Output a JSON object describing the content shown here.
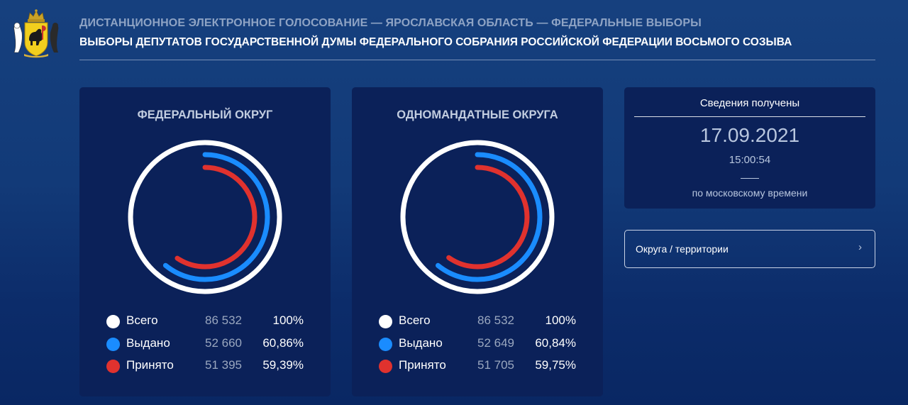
{
  "header": {
    "subtitle": "ДИСТАНЦИОННОЕ ЭЛЕКТРОННОЕ ГОЛОСОВАНИЕ — ЯРОСЛАВСКАЯ ОБЛАСТЬ — ФЕДЕРАЛЬНЫЕ ВЫБОРЫ",
    "title": "ВЫБОРЫ ДЕПУТАТОВ ГОСУДАРСТВЕННОЙ ДУМЫ ФЕДЕРАЛЬНОГО СОБРАНИЯ РОССИЙСКОЙ ФЕДЕРАЦИИ ВОСЬМОГО СОЗЫВА",
    "emblem_icon": "coat-of-arms-icon"
  },
  "colors": {
    "total": "#ffffff",
    "issued": "#1a8cff",
    "accepted": "#e0322e",
    "card_bg": "#0b2159"
  },
  "cards": [
    {
      "title": "ФЕДЕРАЛЬНЫЙ ОКРУГ",
      "rows": [
        {
          "label": "Всего",
          "value": "86 532",
          "percent": "100%",
          "fraction": 1.0
        },
        {
          "label": "Выдано",
          "value": "52 660",
          "percent": "60,86%",
          "fraction": 0.6086
        },
        {
          "label": "Принято",
          "value": "51 395",
          "percent": "59,39%",
          "fraction": 0.5939
        }
      ]
    },
    {
      "title": "ОДНОМАНДАТНЫЕ ОКРУГА",
      "rows": [
        {
          "label": "Всего",
          "value": "86 532",
          "percent": "100%",
          "fraction": 1.0
        },
        {
          "label": "Выдано",
          "value": "52 649",
          "percent": "60,84%",
          "fraction": 0.6084
        },
        {
          "label": "Принято",
          "value": "51 705",
          "percent": "59,75%",
          "fraction": 0.5975
        }
      ]
    }
  ],
  "info": {
    "label": "Сведения получены",
    "date": "17.09.2021",
    "time": "15:00:54",
    "timezone": "по московскому времени"
  },
  "nav": {
    "label": "Округа / территории",
    "chevron": "›"
  }
}
